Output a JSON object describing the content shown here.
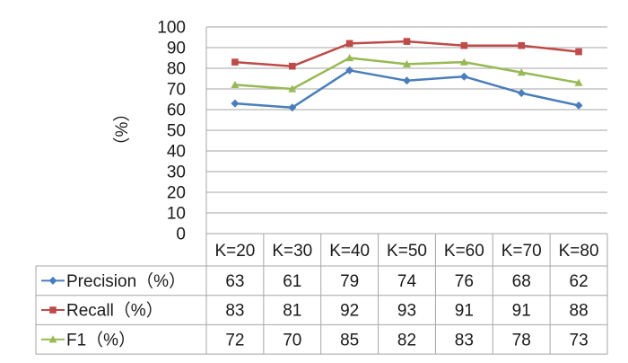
{
  "chart_data": {
    "type": "line",
    "title": "",
    "xlabel": "",
    "ylabel": "（%）",
    "ylim": [
      0,
      100
    ],
    "yticks": [
      0,
      10,
      20,
      30,
      40,
      50,
      60,
      70,
      80,
      90,
      100
    ],
    "grid": true,
    "legend": "data-table",
    "categories": [
      "K=20",
      "K=30",
      "K=40",
      "K=50",
      "K=60",
      "K=70",
      "K=80"
    ],
    "series": [
      {
        "name": "Precision（%）",
        "color": "#4a7ebb",
        "marker": "diamond",
        "values": [
          63,
          61,
          79,
          74,
          76,
          68,
          62
        ]
      },
      {
        "name": "Recall（%）",
        "color": "#be4b48",
        "marker": "square",
        "values": [
          83,
          81,
          92,
          93,
          91,
          91,
          88
        ]
      },
      {
        "name": "F1（%）",
        "color": "#98b954",
        "marker": "triangle",
        "values": [
          72,
          70,
          85,
          82,
          83,
          78,
          73
        ]
      }
    ]
  }
}
